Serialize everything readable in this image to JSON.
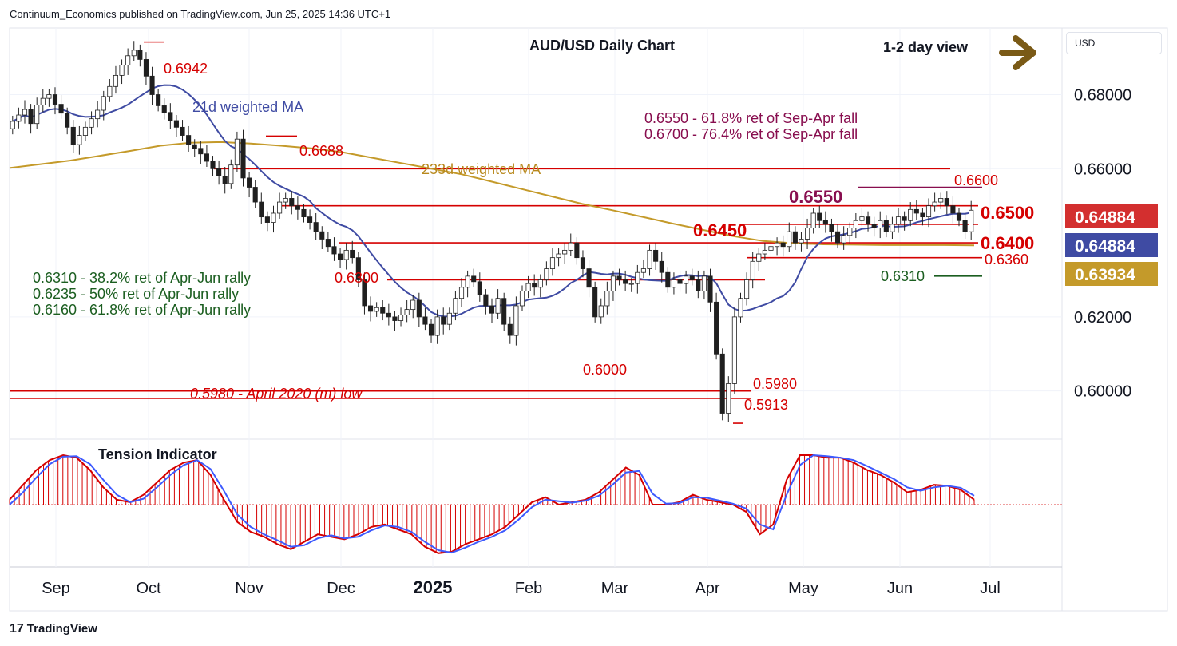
{
  "header": {
    "publisher": "Continuum_Economics published on TradingView.com, Jun 25, 2025 14:36 UTC+1",
    "brand": "TradingView",
    "currency": "USD"
  },
  "chart_data": {
    "type": "candlestick",
    "title": "AUD/USD Daily Chart",
    "view_label": "1-2 day view",
    "ylim": [
      0.587,
      0.698
    ],
    "y_ticks": [
      "0.68000",
      "0.66000",
      "0.62000",
      "0.60000"
    ],
    "x_ticks": [
      "Sep",
      "Oct",
      "Nov",
      "Dec",
      "2025",
      "Feb",
      "Mar",
      "Apr",
      "May",
      "Jun",
      "Jul"
    ],
    "closes": [
      0.6728,
      0.6745,
      0.676,
      0.6722,
      0.6772,
      0.679,
      0.68,
      0.6774,
      0.675,
      0.6712,
      0.6665,
      0.669,
      0.6712,
      0.6735,
      0.6758,
      0.6795,
      0.6822,
      0.6852,
      0.688,
      0.6905,
      0.692,
      0.6895,
      0.685,
      0.68,
      0.677,
      0.6752,
      0.673,
      0.6712,
      0.669,
      0.6665,
      0.6655,
      0.664,
      0.662,
      0.66,
      0.658,
      0.656,
      0.661,
      0.668,
      0.6575,
      0.655,
      0.651,
      0.647,
      0.6455,
      0.648,
      0.651,
      0.652,
      0.65,
      0.649,
      0.647,
      0.6455,
      0.643,
      0.641,
      0.639,
      0.637,
      0.6355,
      0.638,
      0.636,
      0.63,
      0.623,
      0.6215,
      0.6225,
      0.621,
      0.62,
      0.619,
      0.6205,
      0.622,
      0.6245,
      0.62,
      0.618,
      0.615,
      0.62,
      0.618,
      0.621,
      0.625,
      0.628,
      0.631,
      0.6295,
      0.626,
      0.623,
      0.621,
      0.625,
      0.618,
      0.615,
      0.623,
      0.627,
      0.629,
      0.628,
      0.63,
      0.633,
      0.636,
      0.637,
      0.638,
      0.64,
      0.636,
      0.633,
      0.628,
      0.62,
      0.623,
      0.627,
      0.631,
      0.63,
      0.629,
      0.629,
      0.632,
      0.633,
      0.638,
      0.635,
      0.632,
      0.628,
      0.63,
      0.629,
      0.631,
      0.63,
      0.627,
      0.631,
      0.624,
      0.61,
      0.594,
      0.602,
      0.62,
      0.625,
      0.63,
      0.635,
      0.637,
      0.638,
      0.639,
      0.64,
      0.639,
      0.643,
      0.64,
      0.641,
      0.644,
      0.648,
      0.646,
      0.645,
      0.643,
      0.64,
      0.642,
      0.644,
      0.646,
      0.647,
      0.645,
      0.644,
      0.646,
      0.643,
      0.645,
      0.647,
      0.646,
      0.649,
      0.648,
      0.647,
      0.65,
      0.651,
      0.652,
      0.65,
      0.648,
      0.646,
      0.643,
      0.6488
    ],
    "ma21_label": "21d weighted MA",
    "ma233_label": "233d weighted MA",
    "price_tags": [
      {
        "label": "0.64884",
        "color": "#d32f2f"
      },
      {
        "label": "0.64884",
        "color": "#3f4ba3"
      },
      {
        "label": "0.63934",
        "color": "#c49a2a"
      }
    ],
    "levels": [
      {
        "label": "0.6942",
        "value": 0.6942
      },
      {
        "label": "0.6688",
        "value": 0.6688
      },
      {
        "label": "0.6600",
        "value": 0.66
      },
      {
        "label": "0.6550",
        "value": 0.655
      },
      {
        "label": "0.6500",
        "value": 0.65
      },
      {
        "label": "0.6450",
        "value": 0.645
      },
      {
        "label": "0.6400",
        "value": 0.64
      },
      {
        "label": "0.6360",
        "value": 0.636
      },
      {
        "label": "0.6310",
        "value": 0.631
      },
      {
        "label": "0.6300",
        "value": 0.63
      },
      {
        "label": "0.6000",
        "value": 0.6
      },
      {
        "label": "0.5980",
        "value": 0.598
      },
      {
        "label": "0.5913",
        "value": 0.5913
      }
    ],
    "annotations": {
      "resistance_1": "0.6550 - 61.8% ret of Sep-Apr fall",
      "resistance_2": "0.6700 - 76.4% ret of Sep-Apr fall",
      "support_1": "0.6310 - 38.2% ret of Apr-Jun rally",
      "support_2": "0.6235 - 50% ret of Apr-Jun rally",
      "support_3": "0.6160 - 61.8% ret of Apr-Jun rally",
      "april_low": "0.5980 - April 2020 (m) low"
    },
    "indicator": {
      "name": "Tension Indicator",
      "values": [
        0.1,
        0.4,
        0.7,
        0.9,
        1.0,
        0.95,
        0.7,
        0.35,
        0.1,
        0.05,
        0.2,
        0.45,
        0.7,
        0.85,
        0.9,
        0.6,
        0.1,
        -0.35,
        -0.55,
        -0.65,
        -0.8,
        -0.9,
        -0.75,
        -0.6,
        -0.65,
        -0.7,
        -0.6,
        -0.45,
        -0.4,
        -0.5,
        -0.6,
        -0.85,
        -0.98,
        -0.95,
        -0.8,
        -0.7,
        -0.6,
        -0.45,
        -0.2,
        0.05,
        0.15,
        0.0,
        0.05,
        0.1,
        0.25,
        0.5,
        0.75,
        0.6,
        0.0,
        0.0,
        0.05,
        0.2,
        0.1,
        0.05,
        0.0,
        -0.15,
        -0.6,
        -0.4,
        0.5,
        1.0,
        1.0,
        0.95,
        0.95,
        0.85,
        0.7,
        0.6,
        0.45,
        0.25,
        0.3,
        0.4,
        0.38,
        0.3,
        0.1
      ],
      "signal": [
        0.0,
        0.25,
        0.55,
        0.82,
        0.97,
        0.98,
        0.82,
        0.5,
        0.2,
        0.05,
        0.12,
        0.35,
        0.6,
        0.8,
        0.9,
        0.72,
        0.28,
        -0.2,
        -0.45,
        -0.6,
        -0.72,
        -0.85,
        -0.82,
        -0.68,
        -0.62,
        -0.68,
        -0.65,
        -0.52,
        -0.42,
        -0.45,
        -0.55,
        -0.75,
        -0.92,
        -0.97,
        -0.87,
        -0.75,
        -0.65,
        -0.52,
        -0.3,
        -0.05,
        0.1,
        0.07,
        0.04,
        0.08,
        0.18,
        0.4,
        0.65,
        0.68,
        0.22,
        0.02,
        0.03,
        0.15,
        0.14,
        0.08,
        0.02,
        -0.08,
        -0.4,
        -0.5,
        0.2,
        0.8,
        1.0,
        0.98,
        0.95,
        0.9,
        0.78,
        0.65,
        0.52,
        0.35,
        0.28,
        0.35,
        0.38,
        0.34,
        0.18
      ]
    },
    "colors": {
      "up": "#1e6f3c",
      "down": "#b22222",
      "resistance": "#d50000",
      "ma21": "#3f4ba3",
      "ma233": "#c49a2a",
      "support_text": "#1b5e20",
      "fib_text": "#880e4f",
      "arrow": "#7a5a16"
    }
  }
}
